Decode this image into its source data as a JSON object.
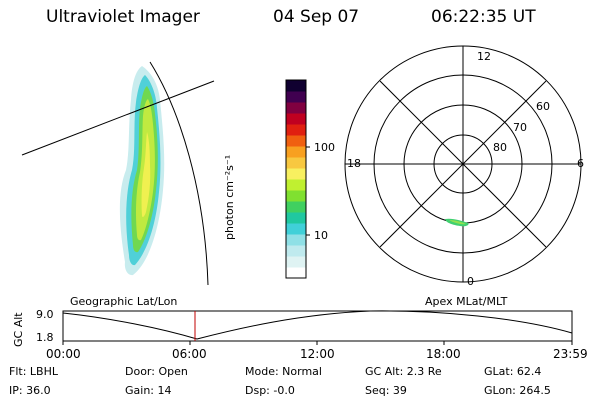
{
  "header": {
    "title": "Ultraviolet Imager",
    "date": "04 Sep 07",
    "time": "06:22:35 UT"
  },
  "colorbar": {
    "label": "photon cm⁻²s⁻¹",
    "tick_100": "100",
    "tick_10": "10",
    "colors_bottom_to_top": [
      "#ffffff",
      "#dff3f3",
      "#bfeaee",
      "#8fe0e6",
      "#40d0d8",
      "#20c8a0",
      "#40d060",
      "#80e030",
      "#c0f030",
      "#f8f060",
      "#f8c840",
      "#f8a020",
      "#f06010",
      "#e02010",
      "#c00020",
      "#800040",
      "#400050",
      "#100030"
    ]
  },
  "labels": {
    "geographic": "Geographic Lat/Lon",
    "apex": "Apex MLat/MLT"
  },
  "polar": {
    "mlt_top": "12",
    "mlt_left": "18",
    "mlt_right": "6",
    "mlt_bottom": "0",
    "lat_60": "60",
    "lat_70": "70",
    "lat_80": "80"
  },
  "altitude_plot": {
    "ylabel": "GC Alt",
    "y_top": "1.8",
    "y_bottom": "9.0",
    "x_ticks": [
      "00:00",
      "06:00",
      "12:00",
      "18:00",
      "23:59"
    ],
    "marker_time": "06:22"
  },
  "footer": {
    "row1": {
      "flt": "Flt: LBHL",
      "door": "Door: Open",
      "mode": "Mode: Normal",
      "gcalt": "GC Alt: 2.3 Re",
      "glat": "GLat:  62.4"
    },
    "row2": {
      "ip": "IP: 36.0",
      "gain": "Gain: 14",
      "dsp": "Dsp:   -0.0",
      "seq": "Seq: 39",
      "glon": "GLon: 264.5"
    }
  }
}
